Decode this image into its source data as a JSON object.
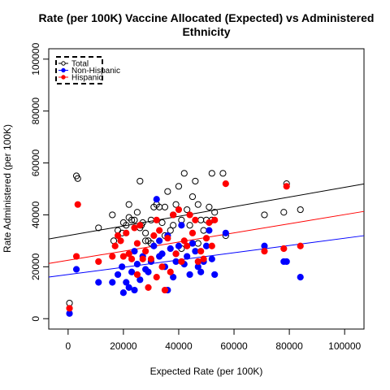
{
  "chart_data": {
    "type": "scatter",
    "title_line1": "Rate (per 100K) Vaccine Allocated (Expected) vs Administered",
    "title_line2": "Ethnicity",
    "xlabel": "Expected Rate (per 100K)",
    "ylabel": "Rate Administered (per 100K)",
    "xlim": [
      -7000,
      107000
    ],
    "ylim": [
      -4000,
      104000
    ],
    "xticks": [
      0,
      20000,
      40000,
      60000,
      80000,
      100000
    ],
    "yticks": [
      0,
      20000,
      40000,
      60000,
      80000,
      100000
    ],
    "legend_position": "top-left",
    "legend": [
      {
        "name": "Total",
        "color": "#000000",
        "marker": "open-circle"
      },
      {
        "name": "Non-Hispanic",
        "color": "#0000ff",
        "marker": "filled-circle"
      },
      {
        "name": "Hispanic",
        "color": "#ff0000",
        "marker": "filled-circle"
      }
    ],
    "series": [
      {
        "name": "Total",
        "color": "#000000",
        "marker": "open-circle",
        "x": [
          500,
          3000,
          3500,
          11000,
          16000,
          16500,
          18000,
          19500,
          21000,
          22000,
          23000,
          24000,
          25000,
          26000,
          26500,
          27000,
          28000,
          29000,
          30000,
          31000,
          32000,
          33000,
          34000,
          35000,
          36000,
          37000,
          38000,
          39000,
          40000,
          41000,
          42000,
          43000,
          44000,
          45000,
          46000,
          47000,
          48000,
          49000,
          50000,
          51000,
          52000,
          53000,
          56000,
          57000,
          71000,
          78000,
          79000,
          84000,
          22000,
          28000,
          35000,
          41000,
          47000,
          52000,
          38000,
          30000,
          26000,
          20000
        ],
        "y": [
          6000,
          55000,
          54000,
          35000,
          40000,
          30000,
          34000,
          33000,
          36000,
          44000,
          38000,
          38000,
          41000,
          53000,
          36000,
          37000,
          33000,
          30000,
          38000,
          43000,
          44000,
          43000,
          37000,
          43000,
          49000,
          34000,
          40000,
          44000,
          51000,
          38000,
          56000,
          42000,
          36000,
          47000,
          53000,
          44000,
          38000,
          34000,
          38000,
          43000,
          56000,
          41000,
          56000,
          32000,
          40000,
          41000,
          52000,
          42000,
          39000,
          30000,
          32000,
          27000,
          29000,
          38000,
          36000,
          29000,
          35000,
          37000
        ]
      },
      {
        "name": "Non-Hispanic",
        "color": "#0000ff",
        "marker": "filled-circle",
        "x": [
          500,
          3000,
          11000,
          16000,
          18000,
          19500,
          20000,
          21000,
          22000,
          23000,
          24000,
          25000,
          26000,
          27000,
          28000,
          29000,
          30000,
          31000,
          32000,
          33000,
          34000,
          35000,
          36000,
          37000,
          38000,
          39000,
          40000,
          41000,
          42000,
          43000,
          44000,
          45000,
          46000,
          47000,
          48000,
          49000,
          50000,
          51000,
          52000,
          53000,
          57000,
          71000,
          78000,
          79000,
          84000,
          24000,
          33000,
          36000,
          39000
        ],
        "y": [
          2000,
          19000,
          14000,
          14000,
          17000,
          20000,
          10000,
          14000,
          12000,
          18000,
          11000,
          21000,
          15000,
          24000,
          19000,
          18000,
          22000,
          28000,
          46000,
          24000,
          25000,
          20000,
          11000,
          27000,
          16000,
          22000,
          28000,
          36000,
          21000,
          24000,
          17000,
          29000,
          26000,
          20000,
          18000,
          22000,
          28000,
          34000,
          23000,
          17000,
          33000,
          28000,
          22000,
          22000,
          16000,
          26000,
          30000,
          32000,
          25000
        ]
      },
      {
        "name": "Hispanic",
        "color": "#ff0000",
        "marker": "filled-circle",
        "x": [
          500,
          3000,
          3500,
          11000,
          16000,
          17000,
          19000,
          20000,
          21000,
          22000,
          23000,
          24000,
          25000,
          26000,
          27000,
          28000,
          29000,
          30000,
          31000,
          32000,
          33000,
          34000,
          35000,
          36000,
          37000,
          38000,
          39000,
          40000,
          41000,
          42000,
          43000,
          44000,
          45000,
          46000,
          47000,
          48000,
          49000,
          50000,
          51000,
          52000,
          53000,
          57000,
          71000,
          78000,
          79000,
          84000,
          18000,
          25000,
          32000
        ],
        "y": [
          4000,
          24000,
          44000,
          22000,
          24000,
          28000,
          30000,
          24000,
          33000,
          25000,
          23000,
          35000,
          17000,
          36000,
          23000,
          26000,
          12000,
          23000,
          32000,
          16000,
          34000,
          20000,
          11000,
          31000,
          18000,
          40000,
          25000,
          42000,
          22000,
          30000,
          28000,
          40000,
          33000,
          38000,
          22000,
          26000,
          23000,
          31000,
          37000,
          28000,
          38000,
          52000,
          26000,
          27000,
          51000,
          28000,
          32000,
          29000,
          38000
        ]
      }
    ],
    "fit_lines": [
      {
        "series": "Total",
        "color": "#000000",
        "intercept": 32000,
        "slope": 0.186
      },
      {
        "series": "Non-Hispanic",
        "color": "#0000ff",
        "intercept": 17000,
        "slope": 0.14
      },
      {
        "series": "Hispanic",
        "color": "#ff0000",
        "intercept": 22500,
        "slope": 0.176
      }
    ]
  }
}
